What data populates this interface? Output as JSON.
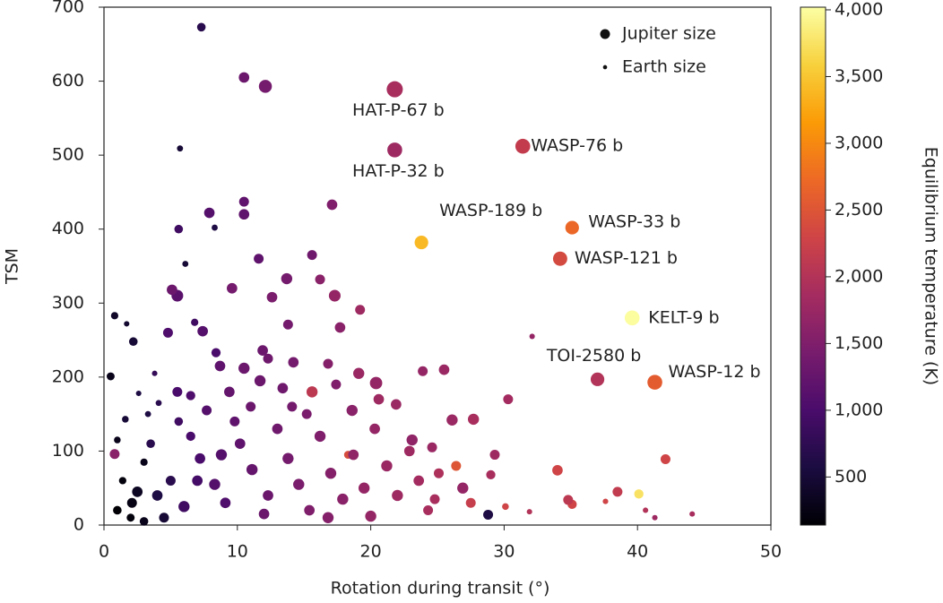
{
  "chart_data": {
    "type": "scatter",
    "xlabel": "Rotation during transit (°)",
    "ylabel": "TSM",
    "xlim": [
      0,
      50
    ],
    "xticks": [
      0,
      10,
      20,
      30,
      40,
      50
    ],
    "ylim": [
      0,
      700
    ],
    "yticks": [
      0,
      100,
      200,
      300,
      400,
      500,
      600,
      700
    ],
    "size_legend": [
      {
        "label": "Jupiter size",
        "size": 1
      },
      {
        "label": "Earth size",
        "size": 0.09
      }
    ],
    "colorbar": {
      "label": "Equilibrium temperature (K)",
      "lim": [
        140,
        4020
      ],
      "ticks": [
        500,
        {
          "value": 1000,
          "label": "1,000"
        },
        {
          "value": 1500,
          "label": "1,500"
        },
        {
          "value": 2000,
          "label": "2,000"
        },
        {
          "value": 2500,
          "label": "2,500"
        },
        {
          "value": 3000,
          "label": "3,000"
        },
        {
          "value": 3500,
          "label": "3,500"
        },
        {
          "value": 4000,
          "label": "4,000"
        }
      ],
      "colormap": [
        "#000004",
        "#1b0c41",
        "#4a0c6b",
        "#781c6d",
        "#a52c60",
        "#cf4446",
        "#ed6925",
        "#fb9b06",
        "#f7d13d",
        "#fcffa4"
      ]
    },
    "x": [
      21.8,
      21.8,
      31.4,
      23.8,
      35.1,
      34.2,
      39.6,
      37.0,
      41.3,
      7.3,
      10.5,
      12.1,
      5.7,
      10.5,
      17.1,
      7.9,
      10.5,
      5.6,
      8.3,
      11.6,
      15.6,
      6.1,
      13.7,
      16.2,
      5.1,
      5.5,
      9.6,
      12.6,
      17.3,
      19.2,
      0.8,
      1.7,
      6.8,
      7.4,
      17.7,
      13.8,
      4.8,
      2.2,
      8.4,
      11.9,
      12.3,
      14.2,
      16.8,
      23.9,
      25.5,
      0.5,
      3.8,
      8.7,
      10.5,
      19.1,
      15.6,
      20.6,
      30.3,
      21.9,
      26.1,
      27.7,
      20.4,
      5.5,
      6.5,
      2.6,
      4.1,
      9.4,
      13.4,
      17.4,
      11.0,
      7.7,
      3.3,
      1.6,
      15.2,
      18.6,
      23.1,
      24.6,
      29.3,
      34.0,
      38.5,
      42.1,
      40.1,
      26.4,
      29.0,
      34.8,
      35.1,
      28.8,
      26.9,
      27.5,
      24.8,
      30.1,
      31.9,
      37.6,
      40.6,
      41.3,
      44.1,
      32.1,
      0.8,
      1.0,
      1.4,
      2.1,
      1.0,
      3.0,
      2.5,
      4.0,
      5.0,
      6.0,
      7.2,
      8.3,
      9.1,
      10.2,
      11.1,
      12.3,
      13.0,
      13.8,
      14.6,
      15.4,
      16.2,
      17.0,
      17.9,
      18.7,
      19.5,
      20.3,
      21.2,
      22.0,
      22.9,
      23.6,
      24.3,
      25.1,
      18.3,
      6.5,
      3.5,
      4.5,
      9.8,
      12.0,
      16.8,
      20.0,
      14.1,
      11.7,
      7.0,
      8.8,
      5.6,
      2.0,
      3.0
    ],
    "values": [
      589,
      507,
      512,
      382,
      402,
      360,
      280,
      197,
      193,
      673,
      605,
      593,
      509,
      437,
      433,
      422,
      420,
      400,
      402,
      360,
      365,
      353,
      333,
      332,
      318,
      310,
      320,
      308,
      310,
      291,
      283,
      272,
      274,
      262,
      267,
      271,
      260,
      248,
      233,
      236,
      225,
      220,
      218,
      208,
      210,
      201,
      205,
      215,
      212,
      205,
      180,
      170,
      170,
      163,
      142,
      143,
      192,
      180,
      175,
      178,
      165,
      180,
      185,
      190,
      160,
      155,
      150,
      143,
      150,
      155,
      115,
      105,
      95,
      74,
      45,
      89,
      42,
      80,
      68,
      34,
      28,
      14,
      50,
      30,
      35,
      25,
      18,
      32,
      20,
      10,
      15,
      255,
      96,
      115,
      60,
      30,
      20,
      85,
      45,
      40,
      60,
      25,
      90,
      55,
      30,
      110,
      75,
      40,
      130,
      90,
      55,
      20,
      120,
      70,
      35,
      95,
      50,
      130,
      80,
      40,
      100,
      60,
      20,
      70,
      95,
      120,
      110,
      10,
      140,
      15,
      10,
      12,
      160,
      195,
      60,
      95,
      140,
      10,
      5
    ],
    "sizes": [
      2.0,
      1.8,
      1.8,
      1.6,
      1.6,
      1.7,
      1.8,
      1.6,
      1.8,
      0.8,
      1.1,
      1.5,
      0.4,
      1.0,
      1.1,
      1.1,
      1.1,
      0.8,
      0.4,
      1.0,
      1.0,
      0.4,
      1.2,
      1.0,
      1.1,
      1.3,
      1.1,
      1.1,
      1.3,
      1.0,
      0.6,
      0.3,
      0.6,
      1.1,
      1.1,
      1.0,
      1.0,
      0.8,
      0.9,
      1.1,
      1.0,
      1.1,
      1.0,
      1.0,
      1.1,
      0.7,
      0.3,
      1.1,
      1.2,
      1.2,
      1.2,
      1.1,
      1.0,
      1.1,
      1.2,
      1.2,
      1.4,
      1.0,
      0.9,
      0.3,
      0.4,
      1.1,
      1.1,
      1.0,
      1.0,
      1.0,
      0.4,
      0.5,
      1.0,
      1.2,
      1.2,
      1.0,
      1.0,
      1.1,
      1.0,
      1.0,
      0.9,
      1.0,
      0.9,
      1.0,
      0.9,
      1.0,
      1.2,
      1.0,
      1.0,
      0.5,
      0.3,
      0.3,
      0.3,
      0.3,
      0.3,
      0.3,
      1.0,
      0.5,
      0.6,
      1.0,
      0.8,
      0.6,
      1.1,
      1.1,
      1.0,
      1.2,
      1.1,
      1.2,
      1.1,
      1.1,
      1.2,
      1.1,
      1.1,
      1.2,
      1.2,
      1.1,
      1.2,
      1.2,
      1.2,
      1.1,
      1.2,
      1.1,
      1.2,
      1.2,
      1.1,
      1.1,
      1.0,
      1.0,
      0.7,
      0.9,
      0.8,
      1.0,
      1.0,
      1.1,
      1.2,
      1.2,
      1.0,
      1.2,
      1.1,
      1.2,
      0.8,
      0.7,
      0.8
    ],
    "temperatures": [
      1900,
      1800,
      2160,
      3400,
      2700,
      2360,
      4000,
      2000,
      2580,
      700,
      1300,
      1400,
      500,
      1200,
      1500,
      1100,
      1200,
      900,
      600,
      1200,
      1350,
      500,
      1400,
      1600,
      1300,
      1150,
      1400,
      1450,
      1700,
      1800,
      400,
      450,
      900,
      1100,
      1600,
      1400,
      1050,
      500,
      1000,
      1300,
      1350,
      1400,
      1550,
      1700,
      1750,
      300,
      800,
      1200,
      1300,
      1750,
      2100,
      1800,
      1850,
      1750,
      1750,
      1900,
      1700,
      1000,
      1050,
      600,
      700,
      1250,
      1350,
      1500,
      1300,
      1100,
      600,
      500,
      1450,
      1600,
      1650,
      1750,
      1800,
      2300,
      2150,
      2300,
      3750,
      2500,
      1900,
      2100,
      2300,
      600,
      1700,
      2200,
      1900,
      2300,
      2000,
      2300,
      2000,
      1800,
      1900,
      1700,
      1600,
      300,
      200,
      250,
      150,
      300,
      350,
      600,
      700,
      900,
      1000,
      1100,
      1050,
      1200,
      1250,
      1300,
      1350,
      1400,
      1450,
      1500,
      1500,
      1550,
      1600,
      1650,
      1700,
      1700,
      1750,
      1800,
      1800,
      1850,
      1900,
      1950,
      2400,
      1000,
      700,
      500,
      1200,
      1300,
      1550,
      1700,
      1400,
      1300,
      950,
      1100,
      900,
      200,
      300
    ],
    "labels": [
      "HAT-P-67 b",
      "HAT-P-32 b",
      "WASP-76 b",
      "WASP-189 b",
      "WASP-33 b",
      "WASP-121 b",
      "KELT-9 b",
      "TOI-2580 b",
      "WASP-12 b",
      null,
      null,
      null,
      null,
      null,
      null,
      null,
      null,
      null,
      null,
      null,
      null,
      null,
      null,
      null,
      null,
      null,
      null,
      null,
      null,
      null,
      null,
      null,
      null,
      null,
      null,
      null,
      null,
      null,
      null,
      null,
      null,
      null,
      null,
      null,
      null,
      null,
      null,
      null,
      null,
      null,
      null,
      null,
      null,
      null,
      null,
      null,
      null,
      null,
      null,
      null,
      null,
      null,
      null,
      null,
      null,
      null,
      null,
      null,
      null,
      null,
      null,
      null,
      null,
      null,
      null,
      null,
      null,
      null,
      null,
      null,
      null,
      null,
      null,
      null,
      null,
      null,
      null,
      null,
      null,
      null,
      null,
      null,
      null,
      null,
      null,
      null,
      null,
      null,
      null,
      null,
      null,
      null,
      null,
      null,
      null,
      null,
      null,
      null,
      null,
      null,
      null,
      null,
      null,
      null,
      null,
      null,
      null,
      null,
      null,
      null,
      null,
      null,
      null,
      null,
      null,
      null,
      null,
      null,
      null,
      null,
      null,
      null,
      null,
      null,
      null,
      null,
      null,
      null,
      null
    ]
  }
}
